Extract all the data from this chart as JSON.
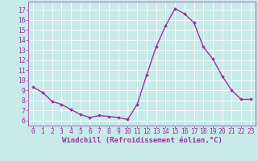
{
  "x": [
    0,
    1,
    2,
    3,
    4,
    5,
    6,
    7,
    8,
    9,
    10,
    11,
    12,
    13,
    14,
    15,
    16,
    17,
    18,
    19,
    20,
    21,
    22,
    23
  ],
  "y": [
    9.3,
    8.8,
    7.9,
    7.6,
    7.1,
    6.6,
    6.3,
    6.5,
    6.4,
    6.3,
    6.1,
    7.6,
    10.5,
    13.3,
    15.4,
    17.1,
    16.6,
    15.7,
    13.3,
    12.1,
    10.4,
    9.0,
    8.1,
    8.1
  ],
  "line_color": "#993399",
  "marker": "D",
  "marker_size": 1.8,
  "line_width": 1.0,
  "bg_color": "#c8eaea",
  "grid_color": "#ffffff",
  "xlabel": "Windchill (Refroidissement éolien,°C)",
  "xlabel_color": "#993399",
  "tick_color": "#993399",
  "xlabel_fontsize": 6.5,
  "tick_fontsize": 5.8,
  "ylim": [
    5.5,
    17.8
  ],
  "xlim": [
    -0.5,
    23.5
  ],
  "yticks": [
    6,
    7,
    8,
    9,
    10,
    11,
    12,
    13,
    14,
    15,
    16,
    17
  ],
  "xticks": [
    0,
    1,
    2,
    3,
    4,
    5,
    6,
    7,
    8,
    9,
    10,
    11,
    12,
    13,
    14,
    15,
    16,
    17,
    18,
    19,
    20,
    21,
    22,
    23
  ]
}
